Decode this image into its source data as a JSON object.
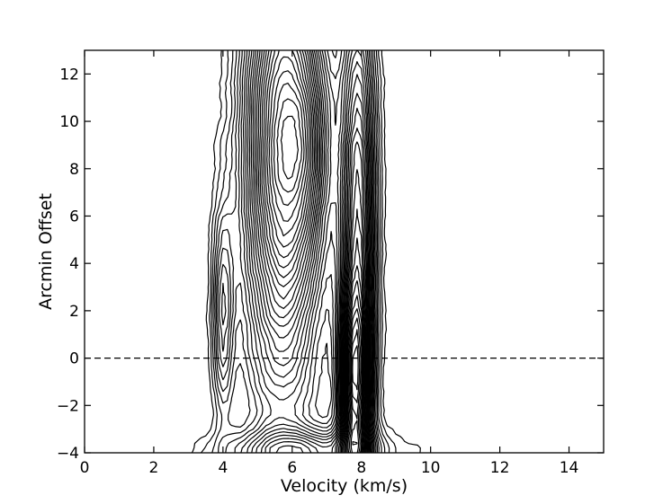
{
  "chart_data": {
    "type": "contour",
    "xlabel": "Velocity (km/s)",
    "ylabel": "Arcmin Offset",
    "xlim": [
      0,
      15
    ],
    "ylim": [
      -4,
      13
    ],
    "xticks": [
      0,
      2,
      4,
      6,
      8,
      10,
      12,
      14
    ],
    "yticks": [
      -4,
      -2,
      0,
      2,
      4,
      6,
      8,
      10,
      12
    ],
    "xtick_labels": [
      "0",
      "2",
      "4",
      "6",
      "8",
      "10",
      "12",
      "14"
    ],
    "ytick_labels": [
      "−4",
      "−2",
      "0",
      "2",
      "4",
      "6",
      "8",
      "10",
      "12"
    ],
    "reference_line": {
      "y": 0,
      "style": "dashed"
    },
    "grid": false,
    "line_color": "#000000",
    "components": [
      {
        "name": "",
        "x_center": 4.0,
        "x_width": 0.22,
        "y_center": 2.0,
        "y_width": 3.0,
        "amplitude": 0.35
      },
      {
        "name": "",
        "x_center": 5.7,
        "x_width": 0.75,
        "y_center": 9.0,
        "y_width": 7.0,
        "amplitude": 1.0
      },
      {
        "name": "",
        "x_center": 7.8,
        "x_width": 0.3,
        "y_center": -1.5,
        "y_width": 3.0,
        "amplitude": 0.7
      },
      {
        "name": "",
        "x_center": 7.9,
        "x_width": 0.35,
        "y_center": 6.0,
        "y_width": 7.0,
        "amplitude": 0.75
      },
      {
        "name": "",
        "x_center": 6.3,
        "x_width": 1.6,
        "y_center": -4.0,
        "y_width": 0.7,
        "amplitude": 0.45
      },
      {
        "name": "",
        "x_center": 6.5,
        "x_width": 0.45,
        "y_center": 9.0,
        "y_width": 3.0,
        "amplitude": 0.3
      }
    ],
    "noise_amplitude": 0.03,
    "contour_levels": [
      0.06,
      0.1,
      0.14,
      0.18,
      0.22,
      0.26,
      0.3,
      0.34,
      0.38,
      0.42,
      0.46,
      0.5,
      0.54,
      0.58,
      0.62,
      0.66,
      0.7,
      0.74,
      0.78,
      0.82,
      0.86,
      0.9,
      0.94,
      0.98,
      1.02,
      1.06,
      1.1
    ]
  }
}
